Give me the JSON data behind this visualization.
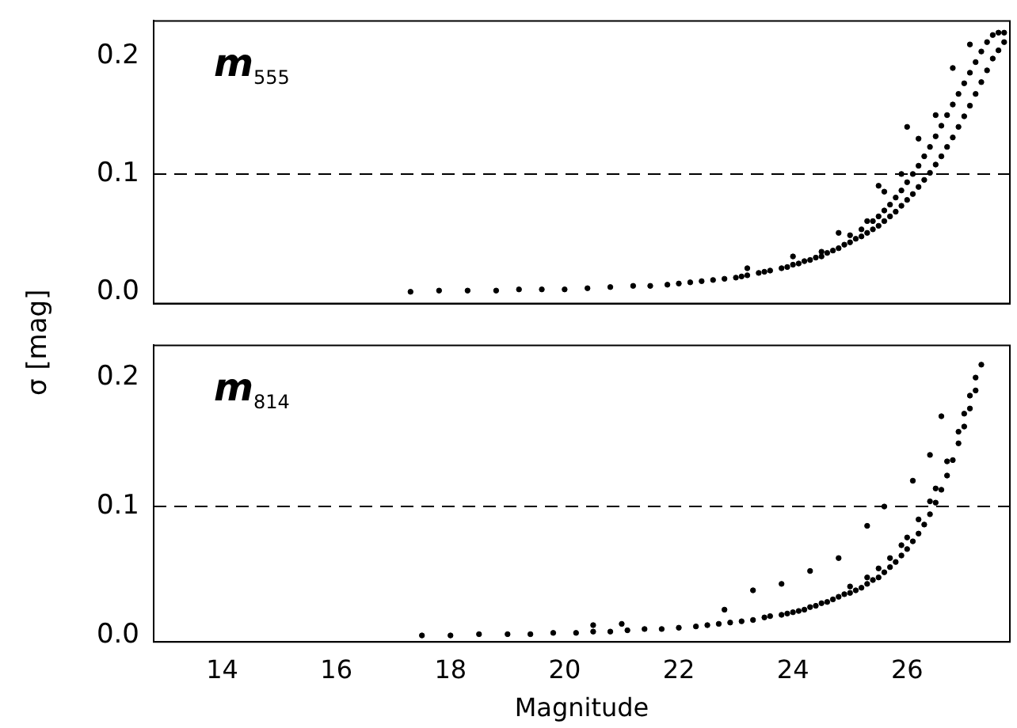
{
  "chart_data": [
    {
      "type": "scatter",
      "ylabel": "σ [mag]",
      "annotations": [
        "m$_{555}$"
      ],
      "xlim": [
        12.8,
        27.8
      ],
      "ylim": [
        -0.01,
        0.23
      ],
      "xticks": [
        14,
        16,
        18,
        20,
        22,
        24,
        26
      ],
      "yticks": [
        {
          "value": 0,
          "label": "0.0"
        },
        {
          "value": 0.1,
          "label": "0.1"
        },
        {
          "value": 0.2,
          "label": "0.2"
        }
      ],
      "tick_labels": "y",
      "marker": "circle",
      "grid": false,
      "legend": false,
      "ref_lines": [
        {
          "axis": "y",
          "value": 0.1,
          "line_style": "dashed",
          "color": "#000000"
        }
      ],
      "series": [
        {
          "color": "#000000",
          "x": [
            17.3,
            17.8,
            18.3,
            18.8,
            19.2,
            19.6,
            20.0,
            20.4,
            20.8,
            21.2,
            21.5,
            21.8,
            22.0,
            22.2,
            22.4,
            22.6,
            22.8,
            23.0,
            23.1,
            23.2,
            23.4,
            23.5,
            23.6,
            23.8,
            23.9,
            24.0,
            24.1,
            24.2,
            24.3,
            24.4,
            24.5,
            24.5,
            24.6,
            24.7,
            24.8,
            24.9,
            25.0,
            25.0,
            25.1,
            25.2,
            25.2,
            25.3,
            25.4,
            25.4,
            25.5,
            25.5,
            25.6,
            25.6,
            25.7,
            25.7,
            25.8,
            25.8,
            25.9,
            25.9,
            26.0,
            26.0,
            26.1,
            26.1,
            26.2,
            26.2,
            26.3,
            26.3,
            26.4,
            26.4,
            26.5,
            26.5,
            26.6,
            26.6,
            26.7,
            26.7,
            26.8,
            26.8,
            26.9,
            26.9,
            27.0,
            27.0,
            27.1,
            27.1,
            27.2,
            27.2,
            27.3,
            27.3,
            27.4,
            27.4,
            27.5,
            27.5,
            27.6,
            27.6,
            27.7,
            27.7,
            23.2,
            24.0,
            24.8,
            25.3,
            25.6,
            25.9,
            26.2,
            26.5,
            26.8,
            27.1,
            25.5,
            26.0
          ],
          "values": [
            0.0,
            0.001,
            0.001,
            0.001,
            0.002,
            0.002,
            0.002,
            0.003,
            0.004,
            0.005,
            0.005,
            0.006,
            0.007,
            0.008,
            0.009,
            0.01,
            0.011,
            0.012,
            0.013,
            0.014,
            0.016,
            0.017,
            0.018,
            0.02,
            0.021,
            0.023,
            0.024,
            0.026,
            0.027,
            0.029,
            0.03,
            0.034,
            0.033,
            0.035,
            0.037,
            0.04,
            0.042,
            0.048,
            0.045,
            0.047,
            0.053,
            0.05,
            0.053,
            0.06,
            0.056,
            0.064,
            0.06,
            0.069,
            0.064,
            0.074,
            0.068,
            0.08,
            0.073,
            0.086,
            0.078,
            0.093,
            0.083,
            0.1,
            0.089,
            0.107,
            0.095,
            0.115,
            0.101,
            0.123,
            0.108,
            0.132,
            0.115,
            0.141,
            0.123,
            0.15,
            0.131,
            0.159,
            0.14,
            0.168,
            0.149,
            0.177,
            0.158,
            0.186,
            0.168,
            0.195,
            0.178,
            0.204,
            0.188,
            0.212,
            0.198,
            0.218,
            0.205,
            0.22,
            0.212,
            0.22,
            0.02,
            0.03,
            0.05,
            0.06,
            0.085,
            0.1,
            0.13,
            0.15,
            0.19,
            0.21,
            0.09,
            0.14
          ]
        }
      ]
    },
    {
      "type": "scatter",
      "xlabel": "Magnitude",
      "annotations": [
        "m$_{814}$"
      ],
      "xlim": [
        12.8,
        27.8
      ],
      "ylim": [
        -0.005,
        0.225
      ],
      "xticks": [
        14,
        16,
        18,
        20,
        22,
        24,
        26
      ],
      "yticks": [
        {
          "value": 0,
          "label": "0.0"
        },
        {
          "value": 0.1,
          "label": "0.1"
        },
        {
          "value": 0.2,
          "label": "0.2"
        }
      ],
      "marker": "circle",
      "grid": false,
      "legend": false,
      "ref_lines": [
        {
          "axis": "y",
          "value": 0.1,
          "line_style": "dashed",
          "color": "#000000"
        }
      ],
      "series": [
        {
          "color": "#000000",
          "x": [
            17.5,
            18.0,
            18.5,
            19.0,
            19.4,
            19.8,
            20.2,
            20.5,
            20.8,
            21.1,
            21.4,
            21.7,
            22.0,
            22.3,
            22.5,
            22.7,
            22.9,
            23.1,
            23.3,
            23.5,
            23.6,
            23.8,
            23.9,
            24.0,
            24.1,
            24.2,
            24.3,
            24.4,
            24.5,
            24.6,
            24.7,
            24.8,
            24.9,
            25.0,
            25.0,
            25.1,
            25.2,
            25.3,
            25.3,
            25.4,
            25.5,
            25.5,
            25.6,
            25.7,
            25.7,
            25.8,
            25.9,
            25.9,
            26.0,
            26.0,
            26.1,
            26.2,
            26.2,
            26.3,
            26.4,
            26.4,
            26.5,
            26.5,
            26.6,
            26.7,
            26.7,
            26.8,
            26.9,
            26.9,
            27.0,
            27.0,
            27.1,
            27.1,
            27.2,
            27.2,
            27.3,
            20.5,
            21.0,
            22.8,
            23.3,
            23.8,
            24.3,
            24.8,
            25.3,
            25.6,
            26.1,
            26.6,
            26.4
          ],
          "values": [
            0.0,
            0.0,
            0.001,
            0.001,
            0.001,
            0.002,
            0.002,
            0.003,
            0.003,
            0.004,
            0.005,
            0.005,
            0.006,
            0.007,
            0.008,
            0.009,
            0.01,
            0.011,
            0.012,
            0.014,
            0.015,
            0.016,
            0.017,
            0.018,
            0.019,
            0.02,
            0.022,
            0.023,
            0.025,
            0.026,
            0.028,
            0.03,
            0.032,
            0.033,
            0.038,
            0.035,
            0.037,
            0.04,
            0.045,
            0.043,
            0.045,
            0.052,
            0.049,
            0.053,
            0.06,
            0.057,
            0.062,
            0.07,
            0.067,
            0.076,
            0.073,
            0.079,
            0.09,
            0.086,
            0.094,
            0.104,
            0.103,
            0.114,
            0.113,
            0.124,
            0.135,
            0.136,
            0.149,
            0.158,
            0.162,
            0.172,
            0.176,
            0.186,
            0.19,
            0.2,
            0.21,
            0.008,
            0.009,
            0.02,
            0.035,
            0.04,
            0.05,
            0.06,
            0.085,
            0.1,
            0.12,
            0.17,
            0.14
          ]
        }
      ]
    }
  ]
}
